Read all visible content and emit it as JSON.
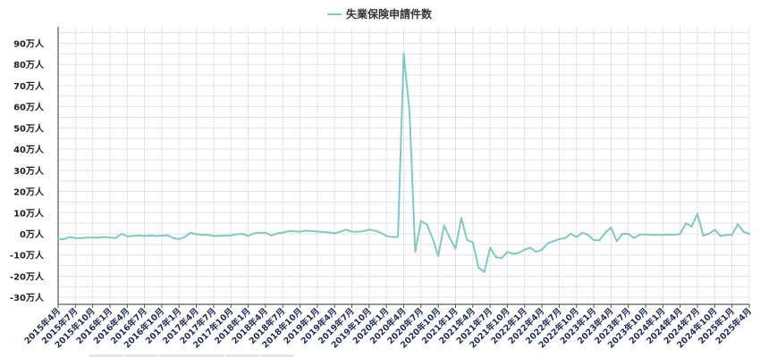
{
  "chart_data": {
    "type": "line",
    "title": "",
    "legend": {
      "position": "top-center",
      "entries": [
        "失業保険申請件数"
      ]
    },
    "series": [
      {
        "name": "失業保険申請件数",
        "color": "#7fcac3",
        "values": [
          -2.5,
          -2.5,
          -1.5,
          -2,
          -2,
          -1.8,
          -1.8,
          -1.8,
          -1.5,
          -1.8,
          -2,
          0,
          -1.2,
          -1,
          -0.8,
          -1,
          -0.8,
          -1,
          -0.9,
          -0.7,
          -2,
          -2.5,
          -1.5,
          0.5,
          -0.2,
          -0.5,
          -0.5,
          -1,
          -1,
          -0.8,
          -0.8,
          -0.2,
          0,
          -1,
          0.2,
          0.5,
          0.5,
          -0.8,
          0.2,
          0.6,
          1.2,
          1.2,
          1,
          1.5,
          1.3,
          1.1,
          0.9,
          0.7,
          0.3,
          1,
          2,
          1,
          1,
          1.2,
          2,
          1.5,
          0.5,
          -1,
          -1.5,
          -1.5,
          85,
          58,
          -8.5,
          6,
          4.5,
          -2,
          -10.5,
          4,
          -2,
          -7,
          7.5,
          -3,
          -4,
          -16,
          -18,
          -6.5,
          -11,
          -11.5,
          -8.5,
          -9.5,
          -9,
          -7.5,
          -6.5,
          -8.5,
          -7.5,
          -4.5,
          -3.5,
          -2.5,
          -2,
          0,
          -1.5,
          0.5,
          -0.5,
          -3,
          -3,
          0.5,
          3,
          -3.5,
          0,
          0,
          -2,
          -0.3,
          -0.3,
          -0.5,
          -0.5,
          -0.5,
          -0.3,
          -0.5,
          0,
          5,
          3.5,
          9.5,
          -0.8,
          0,
          2,
          -1,
          -0.5,
          -0.5,
          4.5,
          1,
          0
        ]
      }
    ],
    "x_start": "2015年4月",
    "x_end": "2025年5月",
    "x_tick_labels": [
      "2015年4月",
      "2015年7月",
      "2015年10月",
      "2016年1月",
      "2016年4月",
      "2016年7月",
      "2016年10月",
      "2017年1月",
      "2017年4月",
      "2017年7月",
      "2017年10月",
      "2018年1月",
      "2018年4月",
      "2018年7月",
      "2018年10月",
      "2019年1月",
      "2019年4月",
      "2019年7月",
      "2019年10月",
      "2020年1月",
      "2020年4月",
      "2020年7月",
      "2020年10月",
      "2021年1月",
      "2021年4月",
      "2021年7月",
      "2021年10月",
      "2022年1月",
      "2022年4月",
      "2022年7月",
      "2022年10月",
      "2023年1月",
      "2023年4月",
      "2023年7月",
      "2023年10月",
      "2024年1月",
      "2024年4月",
      "2024年7月",
      "2024年10月",
      "2025年1月",
      "2025年4月"
    ],
    "y_tick_labels": [
      "90万人",
      "80万人",
      "70万人",
      "60万人",
      "50万人",
      "40万人",
      "30万人",
      "20万人",
      "10万人",
      "0万人",
      "-10万人",
      "-20万人",
      "-30万人"
    ],
    "ylim": [
      -30,
      90
    ],
    "y_unit": "万人",
    "grid": true
  }
}
